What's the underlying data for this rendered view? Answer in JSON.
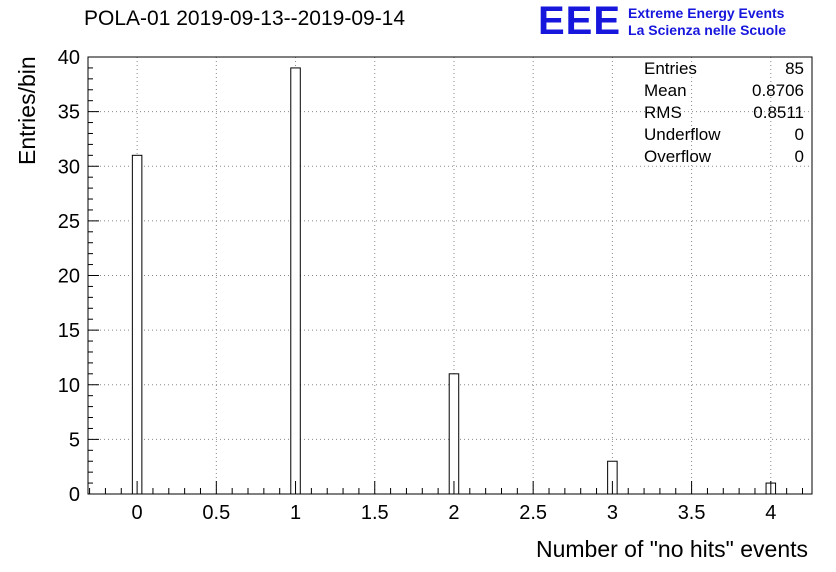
{
  "header": {
    "title": "POLA-01 2019-09-13--2019-09-14",
    "logo": {
      "acronym": "EEE",
      "line1": "Extreme Energy Events",
      "line2": "La Scienza nelle Scuole",
      "color_blue": "#1616dd"
    }
  },
  "stats": {
    "rows": [
      {
        "label": "Entries",
        "value": "85"
      },
      {
        "label": "Mean",
        "value": "0.8706"
      },
      {
        "label": "RMS",
        "value": "0.8511"
      },
      {
        "label": "Underflow",
        "value": "0"
      },
      {
        "label": "Overflow",
        "value": "0"
      }
    ]
  },
  "chart_data": {
    "type": "bar",
    "title": "POLA-01 2019-09-13--2019-09-14",
    "xlabel": "Number of \"no hits\" events",
    "ylabel": "Entries/bin",
    "x": [
      0,
      1,
      2,
      3,
      4
    ],
    "values": [
      31,
      39,
      11,
      3,
      1
    ],
    "bin_width": 0.06,
    "xlim": [
      -0.31,
      4.26
    ],
    "ylim": [
      0,
      40
    ],
    "xticks": {
      "major": [
        0,
        0.5,
        1,
        1.5,
        2,
        2.5,
        3,
        3.5,
        4
      ],
      "labels": [
        "0",
        "0.5",
        "1",
        "1.5",
        "2",
        "2.5",
        "3",
        "3.5",
        "4"
      ],
      "major_step": 0.5,
      "minor_step": 0.1
    },
    "yticks": {
      "major": [
        0,
        5,
        10,
        15,
        20,
        25,
        30,
        35,
        40
      ],
      "labels": [
        "0",
        "5",
        "10",
        "15",
        "20",
        "25",
        "30",
        "35",
        "40"
      ],
      "major_step": 5,
      "minor_step": 1
    },
    "grid": true,
    "grid_color": "#8a8a8a",
    "bar_fill": "#ffffff",
    "bar_stroke": "#000000",
    "axis_color": "#000000",
    "legend": "none"
  }
}
